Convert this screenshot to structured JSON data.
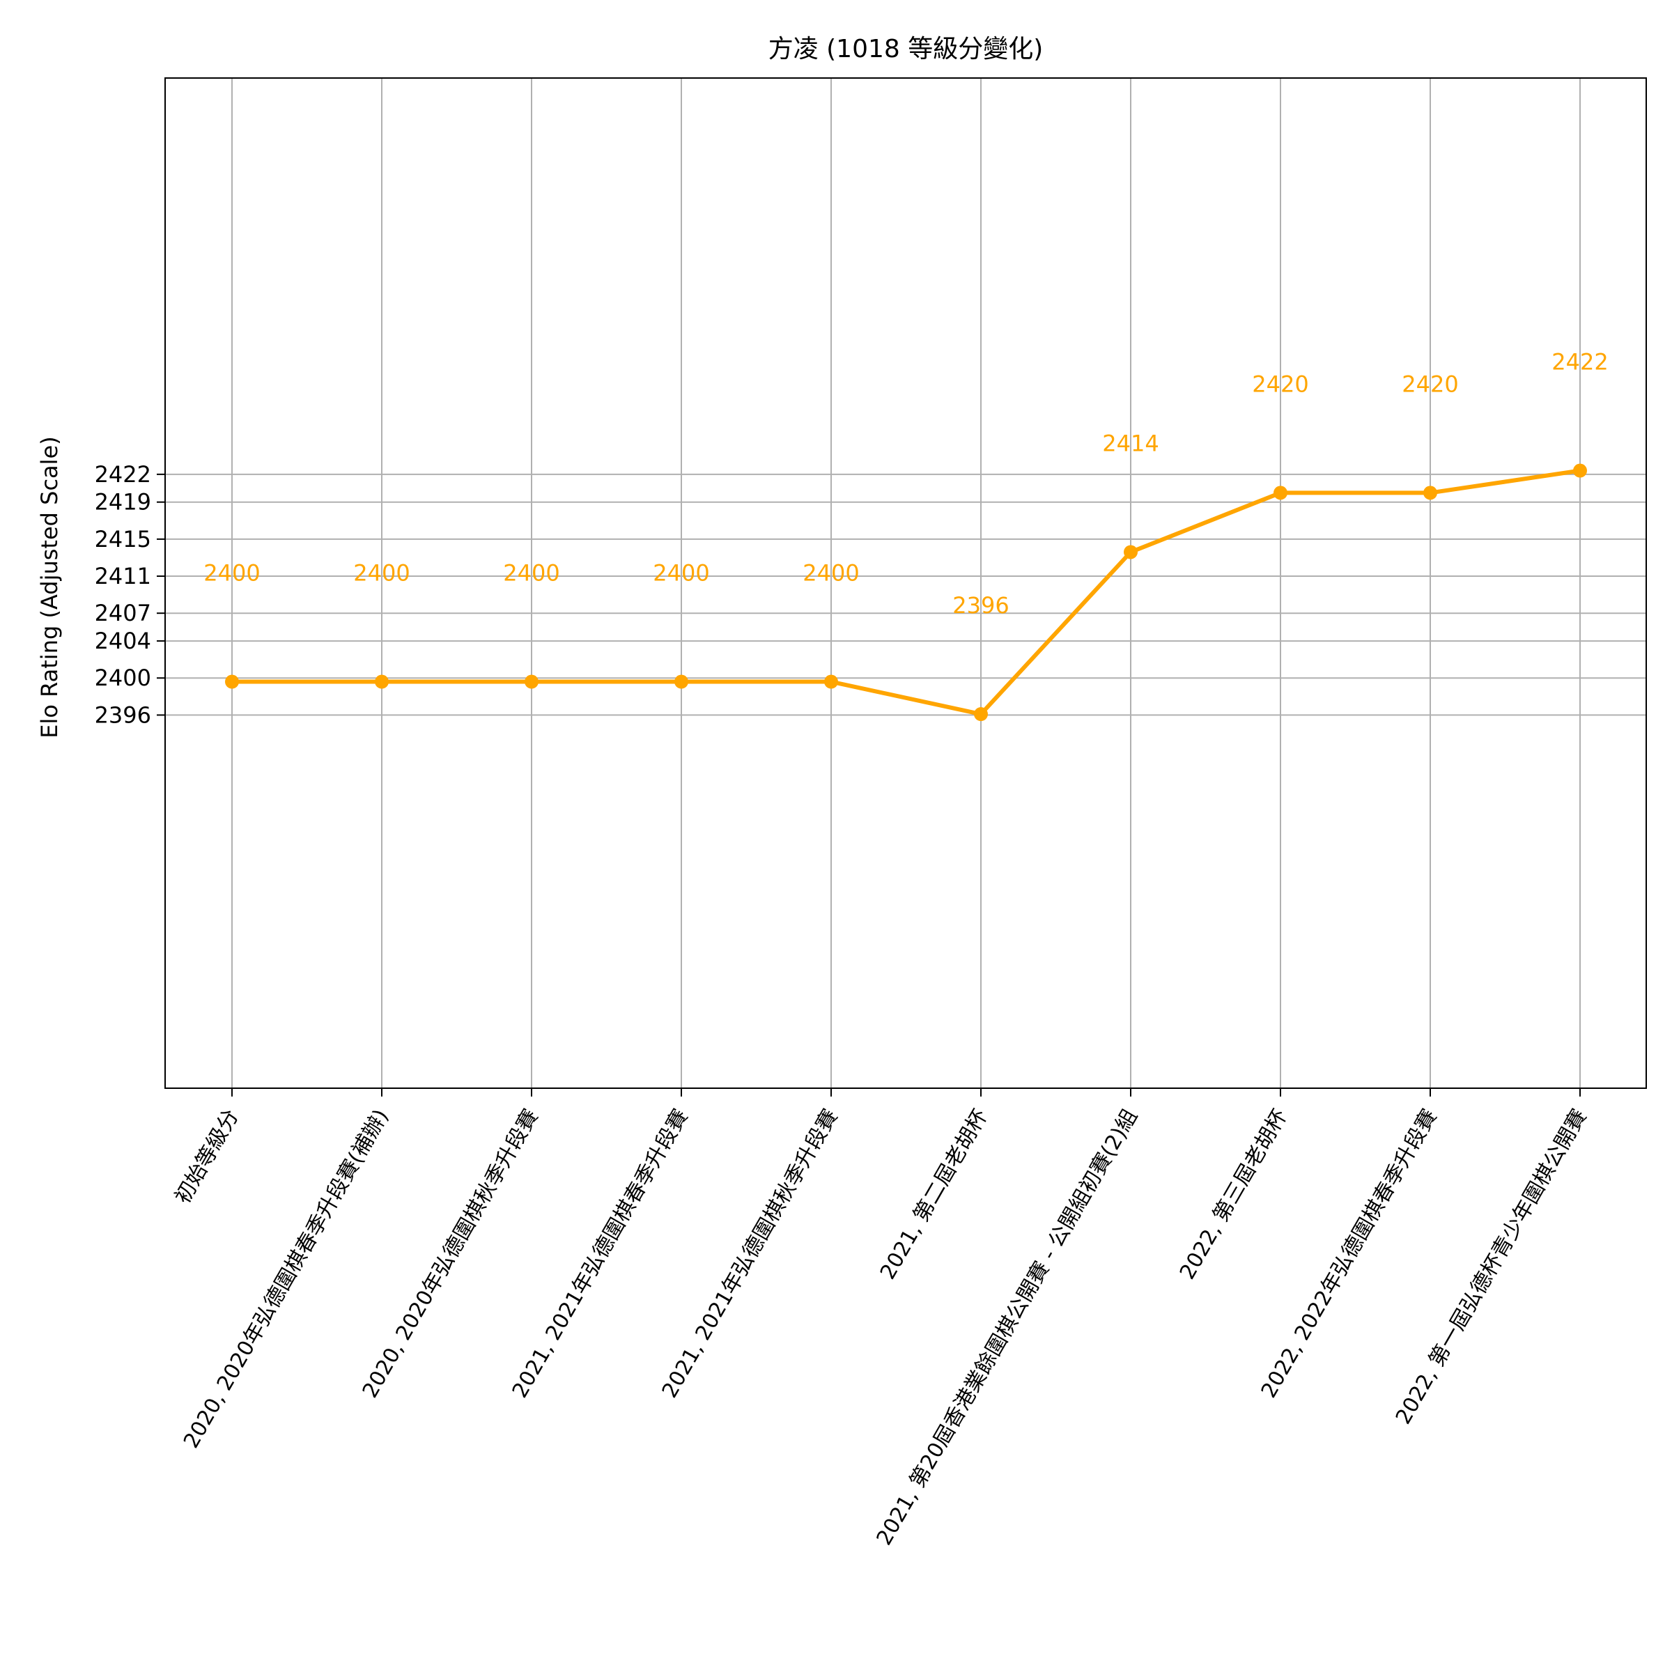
{
  "chart_data": {
    "type": "line",
    "title": "方凌 (1018 等級分變化)",
    "xlabel": "",
    "ylabel": "Elo Rating (Adjusted Scale)",
    "categories": [
      "初始等級分",
      "2020, 2020年弘德圍棋春季升段賽(補辦)",
      "2020, 2020年弘德圍棋秋季升段賽",
      "2021, 2021年弘德圍棋春季升段賽",
      "2021, 2021年弘德圍棋秋季升段賽",
      "2021, 第二屆老胡杯",
      "2021, 第20屆香港業餘圍棋公開賽 - 公開組初賽(2)組",
      "2022, 第三屆老胡杯",
      "2022, 2022年弘德圍棋春季升段賽",
      "2022, 第一屆弘德杯青少年圍棋公開賽"
    ],
    "series": [
      {
        "values": [
          2399.6,
          2399.6,
          2399.6,
          2399.6,
          2399.6,
          2396.1,
          2413.6,
          2420.0,
          2420.0,
          2422.4
        ],
        "labels": [
          "2400",
          "2400",
          "2400",
          "2400",
          "2400",
          "2396",
          "2414",
          "2420",
          "2420",
          "2422"
        ],
        "color": "#FFA500"
      }
    ],
    "yticks": [
      "2396",
      "2400",
      "2404",
      "2407",
      "2411",
      "2415",
      "2419",
      "2422"
    ],
    "ytick_values": [
      2396,
      2400,
      2404,
      2407,
      2411,
      2415,
      2419,
      2422
    ],
    "ylim": [
      2355.7,
      2464.8
    ],
    "grid": true
  }
}
